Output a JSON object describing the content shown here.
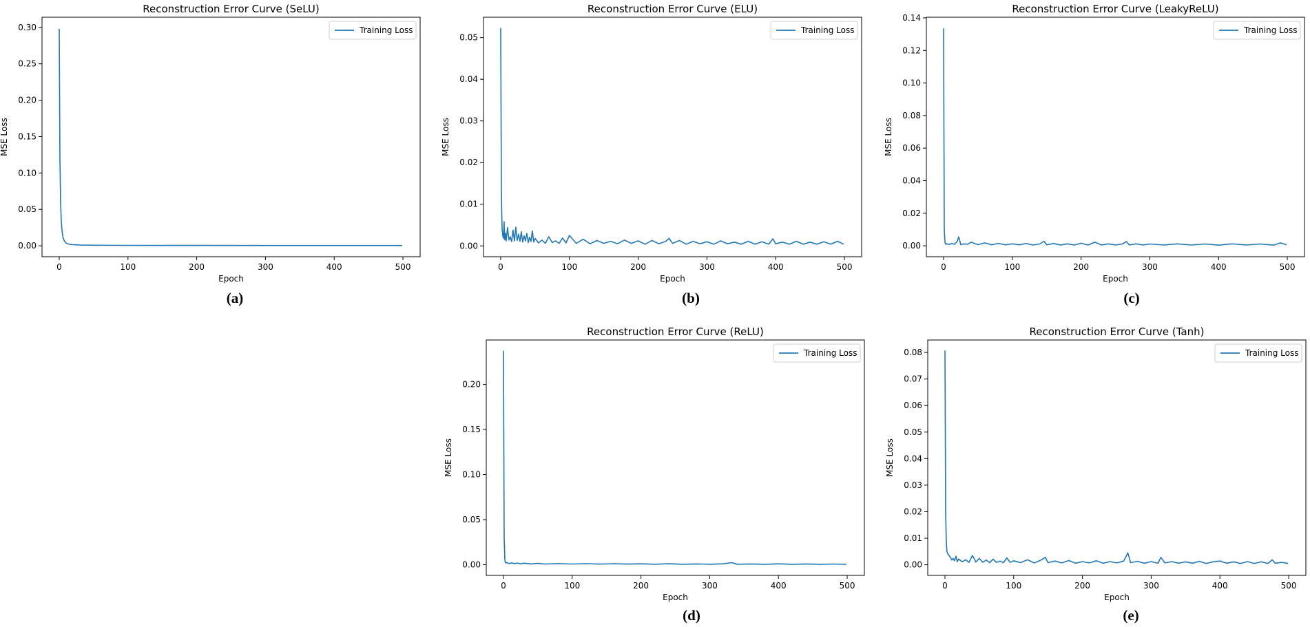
{
  "figure": {
    "panels": [
      {
        "id": "a",
        "caption": "(a)",
        "chart_data": {
          "type": "line",
          "title": "Reconstruction Error Curve (SeLU)",
          "xlabel": "Epoch",
          "ylabel": "MSE Loss",
          "xlim": [
            -25,
            525
          ],
          "ylim": [
            -0.015,
            0.314
          ],
          "xticks": [
            0,
            100,
            200,
            300,
            400,
            500
          ],
          "yticks": [
            0.0,
            0.05,
            0.1,
            0.15,
            0.2,
            0.25,
            0.3
          ],
          "ytick_labels": [
            "0.00",
            "0.05",
            "0.10",
            "0.15",
            "0.20",
            "0.25",
            "0.30"
          ],
          "legend": "upper-right",
          "series": [
            {
              "name": "Training Loss",
              "color": "#1f77b4",
              "x": [
                0,
                1,
                2,
                3,
                4,
                5,
                6,
                8,
                10,
                12,
                15,
                20,
                30,
                50,
                100,
                200,
                300,
                400,
                499
              ],
              "values": [
                0.298,
                0.12,
                0.06,
                0.035,
                0.022,
                0.015,
                0.01,
                0.006,
                0.004,
                0.003,
                0.002,
                0.0015,
                0.001,
                0.0008,
                0.0006,
                0.0005,
                0.0004,
                0.0004,
                0.0004
              ]
            }
          ]
        }
      },
      {
        "id": "b",
        "caption": "(b)",
        "chart_data": {
          "type": "line",
          "title": "Reconstruction Error Curve (ELU)",
          "xlabel": "Epoch",
          "ylabel": "MSE Loss",
          "xlim": [
            -25,
            525
          ],
          "ylim": [
            -0.0026,
            0.0549
          ],
          "xticks": [
            0,
            100,
            200,
            300,
            400,
            500
          ],
          "yticks": [
            0.0,
            0.01,
            0.02,
            0.03,
            0.04,
            0.05
          ],
          "ytick_labels": [
            "0.00",
            "0.01",
            "0.02",
            "0.03",
            "0.04",
            "0.05"
          ],
          "legend": "upper-right",
          "series": [
            {
              "name": "Training Loss",
              "color": "#1f77b4",
              "x": [
                0,
                1,
                2,
                3,
                4,
                5,
                6,
                7,
                8,
                10,
                12,
                14,
                16,
                18,
                20,
                22,
                24,
                26,
                28,
                30,
                32,
                34,
                36,
                38,
                40,
                42,
                44,
                46,
                48,
                50,
                55,
                60,
                65,
                70,
                75,
                80,
                85,
                90,
                95,
                100,
                110,
                120,
                130,
                140,
                150,
                160,
                170,
                180,
                190,
                200,
                210,
                220,
                230,
                240,
                245,
                250,
                260,
                270,
                280,
                290,
                300,
                310,
                320,
                330,
                340,
                350,
                360,
                370,
                380,
                390,
                396,
                400,
                410,
                420,
                430,
                440,
                450,
                460,
                470,
                480,
                490,
                499
              ],
              "values": [
                0.0523,
                0.012,
                0.004,
                0.0025,
                0.0018,
                0.0058,
                0.0015,
                0.003,
                0.0012,
                0.0044,
                0.0014,
                0.0022,
                0.001,
                0.0038,
                0.0012,
                0.0045,
                0.0013,
                0.0028,
                0.0011,
                0.0034,
                0.0009,
                0.0024,
                0.0012,
                0.003,
                0.0008,
                0.0021,
                0.001,
                0.0036,
                0.0009,
                0.0018,
                0.0007,
                0.0014,
                0.0006,
                0.0022,
                0.0008,
                0.0012,
                0.0006,
                0.0019,
                0.0007,
                0.0025,
                0.0006,
                0.0016,
                0.0005,
                0.0013,
                0.0006,
                0.0011,
                0.0005,
                0.0014,
                0.0006,
                0.0012,
                0.0004,
                0.0013,
                0.0005,
                0.0011,
                0.0018,
                0.0006,
                0.0013,
                0.0004,
                0.0011,
                0.0005,
                0.001,
                0.0004,
                0.0012,
                0.0005,
                0.0009,
                0.0004,
                0.0011,
                0.0004,
                0.001,
                0.0004,
                0.0017,
                0.0005,
                0.0009,
                0.0004,
                0.0011,
                0.0004,
                0.0009,
                0.0004,
                0.001,
                0.0004,
                0.0011,
                0.0004
              ]
            }
          ]
        }
      },
      {
        "id": "c",
        "caption": "(c)",
        "chart_data": {
          "type": "line",
          "title": "Reconstruction Error Curve (LeakyReLU)",
          "xlabel": "Epoch",
          "ylabel": "MSE Loss",
          "xlim": [
            -25,
            525
          ],
          "ylim": [
            -0.0067,
            0.1404
          ],
          "xticks": [
            0,
            100,
            200,
            300,
            400,
            500
          ],
          "yticks": [
            0.0,
            0.02,
            0.04,
            0.06,
            0.08,
            0.1,
            0.12,
            0.14
          ],
          "ytick_labels": [
            "0.00",
            "0.02",
            "0.04",
            "0.06",
            "0.08",
            "0.10",
            "0.12",
            "0.14"
          ],
          "legend": "upper-right",
          "series": [
            {
              "name": "Training Loss",
              "color": "#1f77b4",
              "x": [
                0,
                1,
                2,
                3,
                5,
                8,
                12,
                16,
                20,
                22,
                25,
                30,
                35,
                40,
                50,
                60,
                70,
                80,
                90,
                100,
                110,
                120,
                130,
                140,
                146,
                150,
                160,
                170,
                180,
                190,
                200,
                210,
                220,
                230,
                240,
                250,
                260,
                266,
                270,
                280,
                290,
                300,
                320,
                340,
                360,
                380,
                400,
                420,
                440,
                460,
                480,
                490,
                499
              ],
              "values": [
                0.1335,
                0.01,
                0.002,
                0.001,
                0.0012,
                0.0008,
                0.0015,
                0.0009,
                0.0028,
                0.0055,
                0.0008,
                0.0012,
                0.0009,
                0.0022,
                0.0007,
                0.0018,
                0.0006,
                0.0015,
                0.0006,
                0.0012,
                0.0006,
                0.0014,
                0.0005,
                0.0011,
                0.0028,
                0.0006,
                0.0014,
                0.0005,
                0.0012,
                0.0005,
                0.0016,
                0.0005,
                0.0022,
                0.0005,
                0.0012,
                0.0005,
                0.0011,
                0.0026,
                0.0005,
                0.0012,
                0.0005,
                0.0011,
                0.0005,
                0.0012,
                0.0005,
                0.0011,
                0.0004,
                0.0012,
                0.0005,
                0.0011,
                0.0004,
                0.0018,
                0.0006
              ]
            }
          ]
        }
      },
      {
        "id": "d",
        "caption": "(d)",
        "chart_data": {
          "type": "line",
          "title": "Reconstruction Error Curve (ReLU)",
          "xlabel": "Epoch",
          "ylabel": "MSE Loss",
          "xlim": [
            -25,
            525
          ],
          "ylim": [
            -0.0119,
            0.2494
          ],
          "xticks": [
            0,
            100,
            200,
            300,
            400,
            500
          ],
          "yticks": [
            0.0,
            0.05,
            0.1,
            0.15,
            0.2
          ],
          "ytick_labels": [
            "0.00",
            "0.05",
            "0.10",
            "0.15",
            "0.20"
          ],
          "legend": "upper-right",
          "series": [
            {
              "name": "Training Loss",
              "color": "#1f77b4",
              "x": [
                0,
                1,
                2,
                3,
                5,
                8,
                12,
                16,
                20,
                25,
                30,
                40,
                50,
                60,
                80,
                100,
                120,
                140,
                160,
                180,
                200,
                220,
                240,
                260,
                280,
                300,
                320,
                332,
                340,
                360,
                380,
                400,
                420,
                440,
                460,
                480,
                499
              ],
              "values": [
                0.2375,
                0.03,
                0.005,
                0.002,
                0.0025,
                0.0012,
                0.002,
                0.0011,
                0.0018,
                0.0009,
                0.0016,
                0.0008,
                0.0014,
                0.0007,
                0.0012,
                0.0007,
                0.0011,
                0.0006,
                0.001,
                0.0006,
                0.0009,
                0.0005,
                0.001,
                0.0005,
                0.0008,
                0.0005,
                0.0009,
                0.0022,
                0.0005,
                0.0008,
                0.0004,
                0.0009,
                0.0004,
                0.0008,
                0.0004,
                0.0007,
                0.0004
              ]
            }
          ]
        }
      },
      {
        "id": "e",
        "caption": "(e)",
        "chart_data": {
          "type": "line",
          "title": "Reconstruction Error Curve (Tanh)",
          "xlabel": "Epoch",
          "ylabel": "MSE Loss",
          "xlim": [
            -25,
            525
          ],
          "ylim": [
            -0.004,
            0.0847
          ],
          "xticks": [
            0,
            100,
            200,
            300,
            400,
            500
          ],
          "yticks": [
            0.0,
            0.01,
            0.02,
            0.03,
            0.04,
            0.05,
            0.06,
            0.07,
            0.08
          ],
          "ytick_labels": [
            "0.00",
            "0.01",
            "0.02",
            "0.03",
            "0.04",
            "0.05",
            "0.06",
            "0.07",
            "0.08"
          ],
          "legend": "upper-right",
          "series": [
            {
              "name": "Training Loss",
              "color": "#1f77b4",
              "x": [
                0,
                1,
                2,
                3,
                4,
                6,
                8,
                10,
                12,
                14,
                16,
                18,
                20,
                25,
                30,
                35,
                40,
                45,
                50,
                55,
                60,
                65,
                70,
                75,
                80,
                85,
                90,
                95,
                100,
                110,
                120,
                130,
                140,
                146,
                150,
                160,
                170,
                180,
                190,
                200,
                210,
                220,
                230,
                240,
                250,
                260,
                266,
                270,
                280,
                290,
                300,
                310,
                314,
                320,
                330,
                340,
                350,
                360,
                370,
                380,
                390,
                400,
                410,
                420,
                430,
                440,
                450,
                460,
                470,
                476,
                480,
                490,
                499
              ],
              "values": [
                0.0807,
                0.02,
                0.008,
                0.005,
                0.0042,
                0.0035,
                0.0028,
                0.0018,
                0.0024,
                0.0015,
                0.0032,
                0.0012,
                0.0022,
                0.0011,
                0.0019,
                0.0009,
                0.0035,
                0.001,
                0.0024,
                0.0009,
                0.0018,
                0.0008,
                0.0021,
                0.0009,
                0.0014,
                0.0008,
                0.0026,
                0.0009,
                0.0015,
                0.0008,
                0.0019,
                0.0007,
                0.0018,
                0.0028,
                0.0008,
                0.0014,
                0.0007,
                0.0016,
                0.0006,
                0.0012,
                0.0007,
                0.0015,
                0.0006,
                0.0012,
                0.0007,
                0.0014,
                0.0045,
                0.0008,
                0.0013,
                0.0006,
                0.0012,
                0.0006,
                0.0028,
                0.0007,
                0.0012,
                0.0006,
                0.0011,
                0.0006,
                0.0013,
                0.0005,
                0.0011,
                0.0014,
                0.0006,
                0.0011,
                0.0005,
                0.0012,
                0.0005,
                0.0011,
                0.0005,
                0.0019,
                0.0006,
                0.0009,
                0.0005
              ]
            }
          ]
        }
      }
    ]
  }
}
